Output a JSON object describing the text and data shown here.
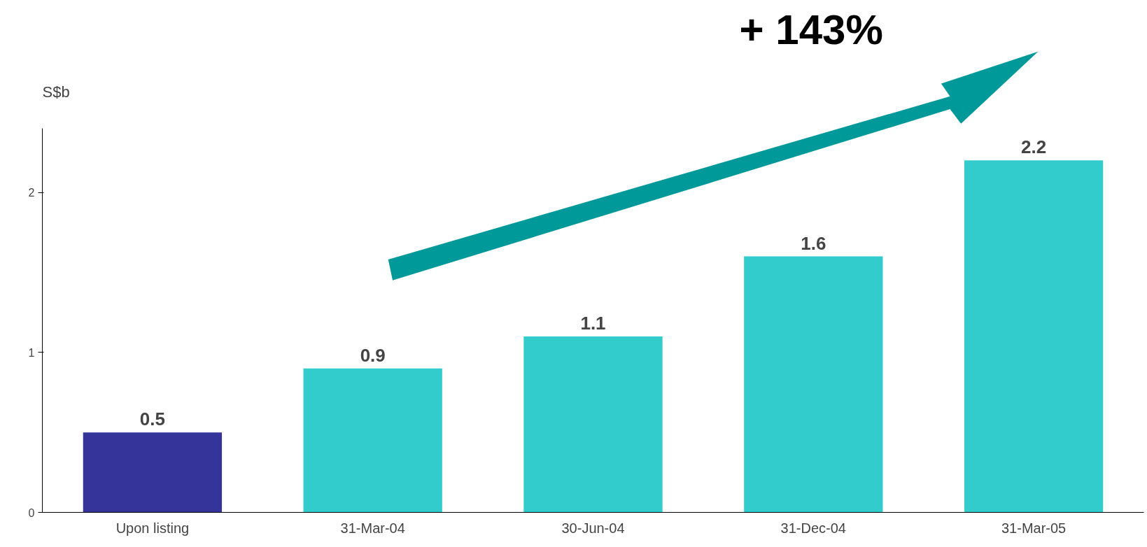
{
  "chart_data": {
    "type": "bar",
    "ylabel": "S$b",
    "categories": [
      "Upon listing",
      "31-Mar-04",
      "30-Jun-04",
      "31-Dec-04",
      "31-Mar-05"
    ],
    "values": [
      0.5,
      0.9,
      1.1,
      1.6,
      2.2
    ],
    "colors": [
      "#35349a",
      "#33cccc",
      "#33cccc",
      "#33cccc",
      "#33cccc"
    ],
    "ylim": [
      0,
      2.4
    ],
    "yticks": [
      0,
      1,
      2
    ],
    "data_labels": true,
    "grid": false,
    "annotations": [
      "+ 143%"
    ]
  }
}
